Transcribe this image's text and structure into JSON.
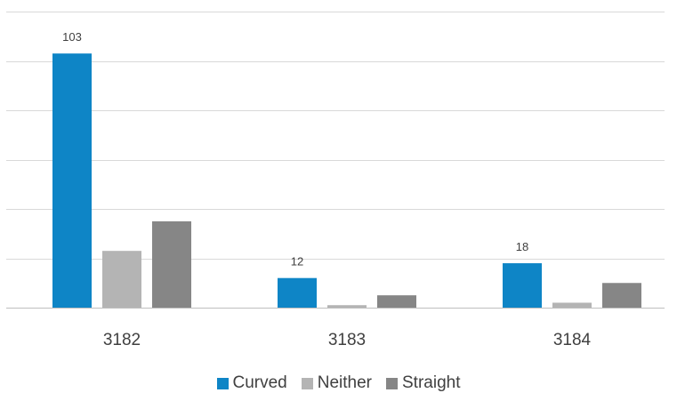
{
  "chart_data": {
    "type": "bar",
    "categories": [
      "3182",
      "3183",
      "3184"
    ],
    "series": [
      {
        "name": "Curved",
        "color": "#0E85C6",
        "values": [
          103,
          12,
          18
        ]
      },
      {
        "name": "Neither",
        "color": "#B4B4B4",
        "values": [
          23,
          1,
          2
        ]
      },
      {
        "name": "Straight",
        "color": "#868686",
        "values": [
          35,
          5,
          10
        ]
      }
    ],
    "data_labels": [
      {
        "series": "Curved",
        "category": "3182",
        "text": "103"
      },
      {
        "series": "Curved",
        "category": "3183",
        "text": "12"
      },
      {
        "series": "Curved",
        "category": "3184",
        "text": "18"
      }
    ],
    "ylim": [
      0,
      120
    ],
    "y_gridline_step": 20,
    "grid": true,
    "legend_position": "bottom",
    "title": "",
    "xlabel": "",
    "ylabel": ""
  }
}
